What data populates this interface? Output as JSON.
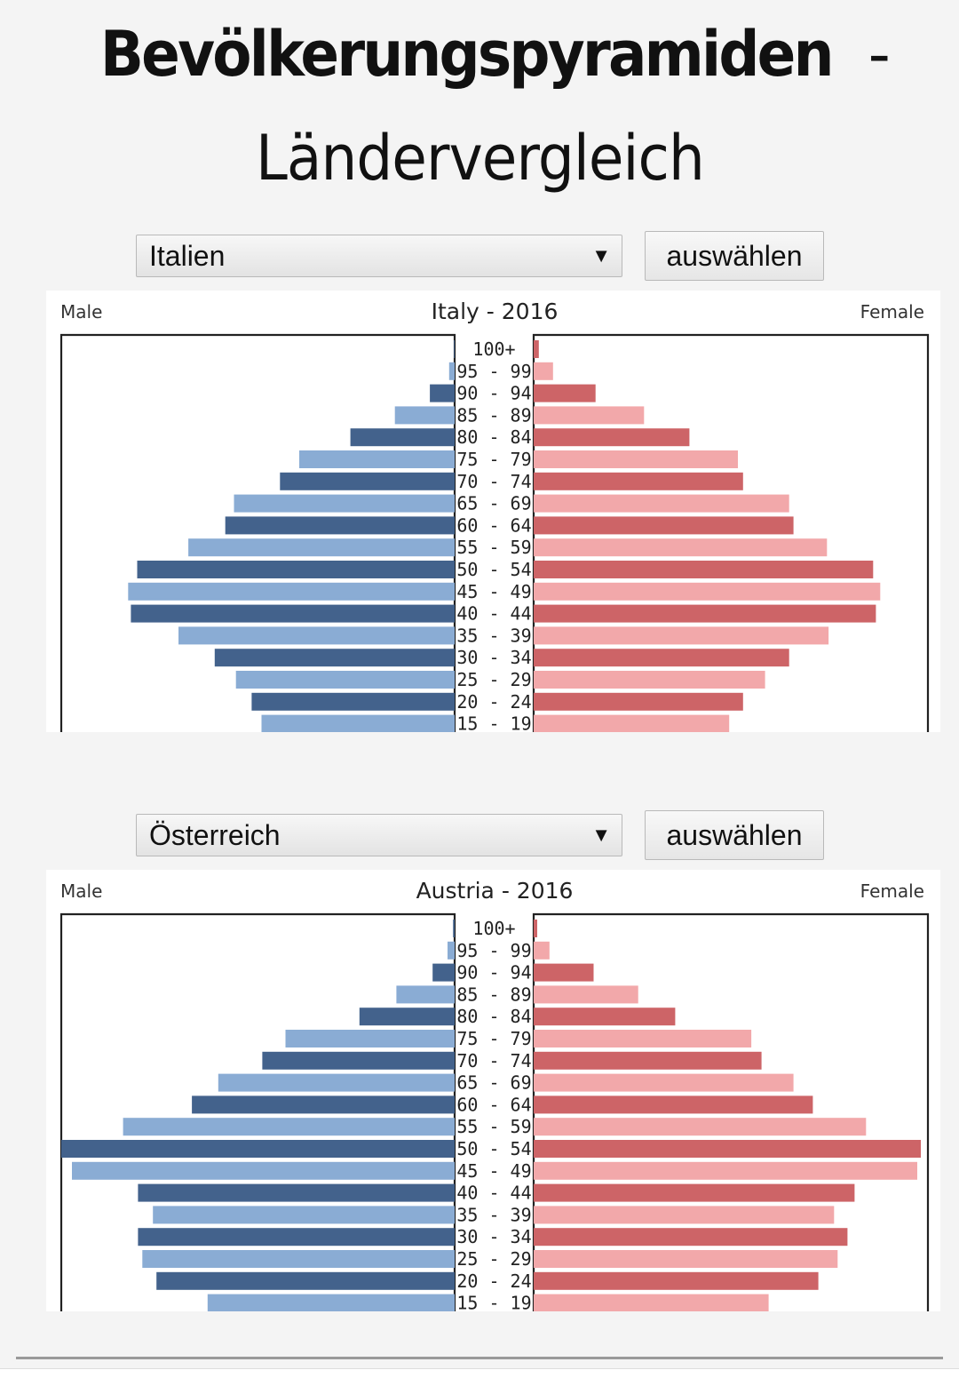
{
  "page": {
    "title_bold": "Bevölkerungspyramiden",
    "title_dash": "-",
    "title_light": "Ländervergleich"
  },
  "selectors": [
    {
      "selected": "Italien",
      "button_label": "auswählen"
    },
    {
      "selected": "Österreich",
      "button_label": "auswählen"
    }
  ],
  "colors": {
    "male_dark": "#43628c",
    "male_light": "#8aacd4",
    "female_dark": "#cd6467",
    "female_light": "#f2a8aa"
  },
  "chart_data": [
    {
      "type": "bar",
      "title": "Italy - 2016",
      "left_label": "Male",
      "right_label": "Female",
      "categories": [
        "100+",
        "95 - 99",
        "90 - 94",
        "85 - 89",
        "80 - 84",
        "75 - 79",
        "70 - 74",
        "65 - 69",
        "60 - 64",
        "55 - 59",
        "50 - 54",
        "45 - 49",
        "40 - 44",
        "35 - 39",
        "30 - 34",
        "25 - 29",
        "20 - 24",
        "15 - 19"
      ],
      "series": [
        {
          "name": "Male",
          "values": [
            0.2,
            1.4,
            6.3,
            15.2,
            26.5,
            39.5,
            44.4,
            56.1,
            58.3,
            67.7,
            80.7,
            83.0,
            82.3,
            70.2,
            61.0,
            55.6,
            51.6,
            49.1
          ]
        },
        {
          "name": "Female",
          "values": [
            1.3,
            4.9,
            15.7,
            28.0,
            39.5,
            51.8,
            53.1,
            64.8,
            65.9,
            74.4,
            86.1,
            87.9,
            86.8,
            74.8,
            64.8,
            58.7,
            53.1,
            49.6
          ]
        }
      ],
      "xlim": [
        0,
        100
      ]
    },
    {
      "type": "bar",
      "title": "Austria - 2016",
      "left_label": "Male",
      "right_label": "Female",
      "categories": [
        "100+",
        "95 - 99",
        "90 - 94",
        "85 - 89",
        "80 - 84",
        "75 - 79",
        "70 - 74",
        "65 - 69",
        "60 - 64",
        "55 - 59",
        "50 - 54",
        "45 - 49",
        "40 - 44",
        "35 - 39",
        "30 - 34",
        "25 - 29",
        "20 - 24",
        "15 - 19"
      ],
      "series": [
        {
          "name": "Male",
          "values": [
            0.4,
            1.8,
            5.6,
            14.8,
            24.2,
            43.0,
            48.9,
            60.1,
            66.8,
            84.3,
            100.0,
            97.3,
            80.5,
            76.7,
            80.5,
            79.4,
            75.8,
            62.8
          ]
        },
        {
          "name": "Female",
          "values": [
            0.9,
            4.0,
            15.2,
            26.5,
            35.9,
            55.2,
            57.8,
            65.9,
            70.8,
            84.3,
            98.2,
            97.3,
            81.4,
            76.2,
            79.6,
            77.1,
            72.2,
            59.6
          ]
        }
      ],
      "xlim": [
        0,
        100
      ]
    }
  ]
}
